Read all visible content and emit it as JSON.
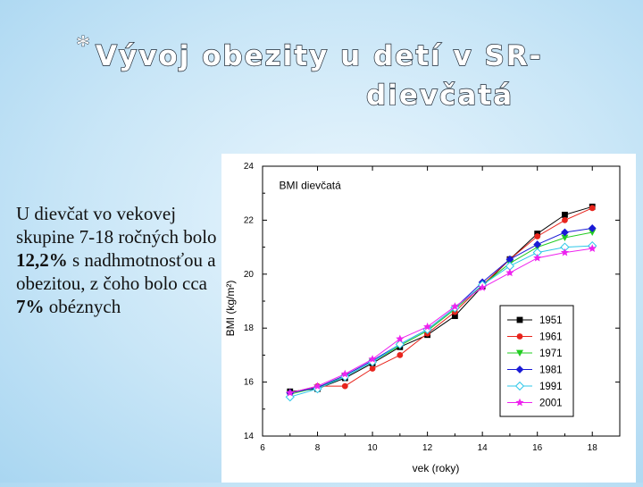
{
  "slide": {
    "bullet": "*",
    "title_line1": "Vývoj obezity u detí v SR-",
    "title_line2": "dievčatá",
    "body": {
      "p1": "U dievčat vo vekovej skupine 7-18 ročných bolo ",
      "v1": "12,2%",
      "p2": " s nadhmotnosťou a obezitou, z čoho bolo cca ",
      "v2": "7%",
      "p3": " obéznych"
    }
  },
  "chart_data": {
    "type": "line",
    "title": "BMI dievčatá",
    "xlabel": "vek (roky)",
    "ylabel": "BMI (kg/m²)",
    "xlim": [
      6,
      19
    ],
    "ylim": [
      14,
      24
    ],
    "xticks": [
      6,
      8,
      10,
      12,
      14,
      16,
      18
    ],
    "yticks": [
      14,
      16,
      18,
      20,
      22,
      24
    ],
    "legend_position": "bottom-right",
    "series": [
      {
        "name": "1951",
        "color": "#000000",
        "marker": "square",
        "x": [
          7,
          8,
          9,
          10,
          11,
          12,
          13,
          14,
          15,
          16,
          17,
          18
        ],
        "y": [
          15.65,
          15.75,
          16.15,
          16.7,
          17.3,
          17.75,
          18.45,
          19.55,
          20.55,
          21.5,
          22.2,
          22.5
        ]
      },
      {
        "name": "1961",
        "color": "#e8241c",
        "marker": "circle",
        "x": [
          7,
          8,
          9,
          10,
          11,
          12,
          13,
          14,
          15,
          16,
          17,
          18
        ],
        "y": [
          15.6,
          15.85,
          15.85,
          16.5,
          17.0,
          17.8,
          18.6,
          19.6,
          20.55,
          21.4,
          22.0,
          22.45
        ]
      },
      {
        "name": "1971",
        "color": "#22cc22",
        "marker": "triangle-down",
        "x": [
          7,
          8,
          9,
          10,
          11,
          12,
          13,
          14,
          15,
          16,
          17,
          18
        ],
        "y": [
          15.55,
          15.8,
          16.2,
          16.75,
          17.35,
          17.9,
          18.7,
          19.6,
          20.4,
          21.0,
          21.35,
          21.55
        ]
      },
      {
        "name": "1981",
        "color": "#1a1ad6",
        "marker": "diamond",
        "x": [
          7,
          8,
          9,
          10,
          11,
          12,
          13,
          14,
          15,
          16,
          17,
          18
        ],
        "y": [
          15.6,
          15.8,
          16.25,
          16.8,
          17.4,
          17.95,
          18.75,
          19.7,
          20.55,
          21.1,
          21.55,
          21.7
        ]
      },
      {
        "name": "1991",
        "color": "#2ec7e8",
        "marker": "diamond-open",
        "x": [
          7,
          8,
          9,
          10,
          11,
          12,
          13,
          14,
          15,
          16,
          17,
          18
        ],
        "y": [
          15.45,
          15.75,
          16.2,
          16.75,
          17.4,
          17.95,
          18.75,
          19.6,
          20.3,
          20.8,
          21.0,
          21.05
        ]
      },
      {
        "name": "2001",
        "color": "#ee22ee",
        "marker": "star",
        "x": [
          7,
          8,
          9,
          10,
          11,
          12,
          13,
          14,
          15,
          16,
          17,
          18
        ],
        "y": [
          15.6,
          15.85,
          16.3,
          16.85,
          17.6,
          18.05,
          18.8,
          19.5,
          20.05,
          20.6,
          20.8,
          20.95
        ]
      }
    ]
  }
}
